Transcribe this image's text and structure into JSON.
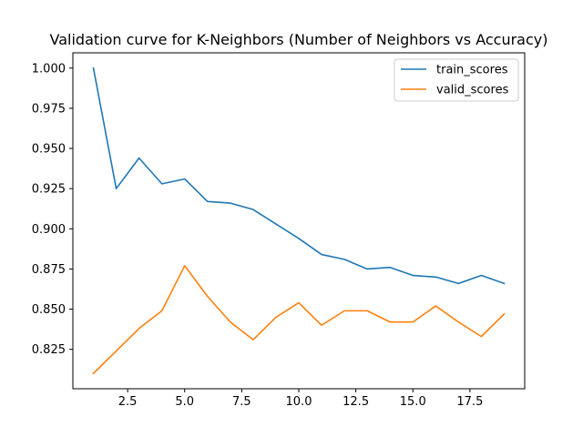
{
  "chart_data": {
    "type": "line",
    "title": "Validation curve for K-Neighbors (Number of Neighbors vs Accuracy)",
    "xlabel": "",
    "ylabel": "",
    "x": [
      1,
      2,
      3,
      4,
      5,
      6,
      7,
      8,
      9,
      10,
      11,
      12,
      13,
      14,
      15,
      16,
      17,
      18,
      19
    ],
    "series": [
      {
        "name": "train_scores",
        "color": "#1f77b4",
        "values": [
          1.0,
          0.925,
          0.944,
          0.928,
          0.931,
          0.917,
          0.916,
          0.912,
          0.903,
          0.894,
          0.884,
          0.881,
          0.875,
          0.876,
          0.871,
          0.87,
          0.866,
          0.871,
          0.866
        ]
      },
      {
        "name": "valid_scores",
        "color": "#ff7f0e",
        "values": [
          0.81,
          0.824,
          0.838,
          0.849,
          0.877,
          0.858,
          0.842,
          0.831,
          0.845,
          0.854,
          0.84,
          0.849,
          0.849,
          0.842,
          0.842,
          0.852,
          0.842,
          0.833,
          0.847
        ]
      }
    ],
    "xlim": [
      0.1,
      19.9
    ],
    "ylim": [
      0.8005,
      1.0095
    ],
    "xticks": [
      "2.5",
      "5.0",
      "7.5",
      "10.0",
      "12.5",
      "15.0",
      "17.5"
    ],
    "yticks": [
      "0.825",
      "0.850",
      "0.875",
      "0.900",
      "0.925",
      "0.950",
      "0.975",
      "1.000"
    ],
    "legend_position": "top-right",
    "grid": false
  }
}
